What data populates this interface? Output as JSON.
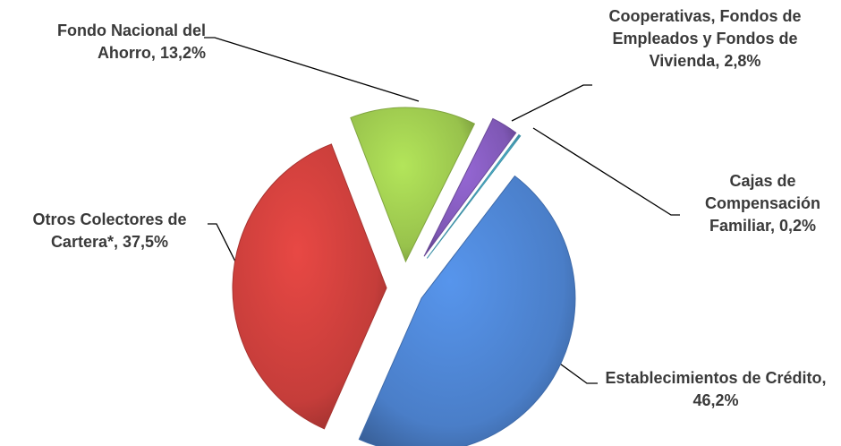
{
  "chart_data": {
    "type": "pie",
    "categories": [
      "Fondo Nacional del Ahorro,",
      "Cooperativas, Fondos de Empleados y Fondos de Vivienda,",
      "Cajas de Compensación Familiar,",
      "Establecimientos de Crédito,",
      "Otros Colectores de Cartera*,"
    ],
    "values": [
      13.2,
      2.8,
      0.2,
      46.2,
      37.5
    ],
    "value_labels": [
      "13,2%",
      "2,8%",
      "0,2%",
      "46,2%",
      "37,5%"
    ],
    "colors": [
      "#98c24c",
      "#7e57b4",
      "#4bacc6",
      "#4a7ec8",
      "#c53d3a"
    ]
  }
}
